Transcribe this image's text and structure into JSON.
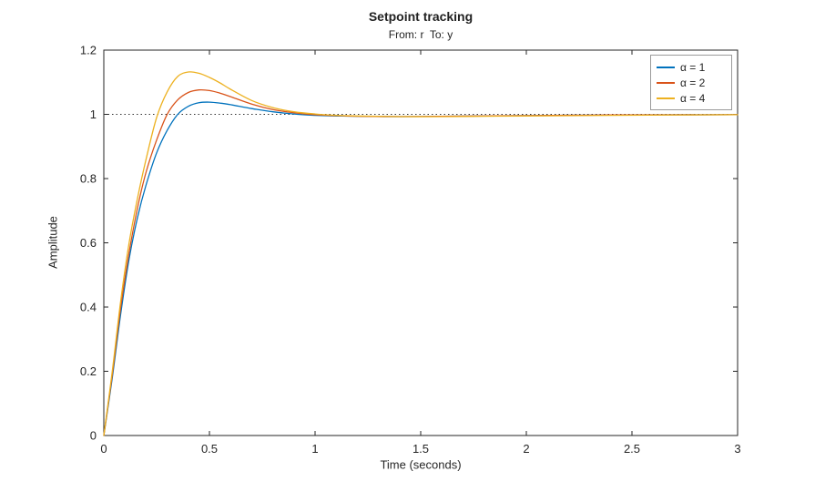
{
  "chart_data": {
    "type": "line",
    "title": "Setpoint tracking",
    "subtitle": "From: r  To: y",
    "xlabel": "Time (seconds)",
    "ylabel": "Amplitude",
    "xlim": [
      0,
      3
    ],
    "ylim": [
      0,
      1.2
    ],
    "xticks": [
      0,
      0.5,
      1,
      1.5,
      2,
      2.5,
      3
    ],
    "xtick_labels": [
      "0",
      "0.5",
      "1",
      "1.5",
      "2",
      "2.5",
      "3"
    ],
    "yticks": [
      0,
      0.2,
      0.4,
      0.6,
      0.8,
      1,
      1.2
    ],
    "ytick_labels": [
      "0",
      "0.2",
      "0.4",
      "0.6",
      "0.8",
      "1",
      "1.2"
    ],
    "grid": false,
    "axis_color": "#262626",
    "legend_position": "top-right",
    "reference_line": {
      "y": 1,
      "style": "dotted",
      "color": "#333333"
    },
    "x": [
      0,
      0.04,
      0.08,
      0.12,
      0.16,
      0.2,
      0.25,
      0.3,
      0.35,
      0.4,
      0.45,
      0.5,
      0.55,
      0.6,
      0.7,
      0.8,
      0.9,
      1.0,
      1.1,
      1.2,
      1.4,
      1.6,
      1.8,
      2.0,
      2.4,
      3.0
    ],
    "series": [
      {
        "name": "alpha-1",
        "label": "α = 1",
        "color": "#0072BD",
        "peak": 1.038,
        "values": [
          0,
          0.18,
          0.38,
          0.55,
          0.68,
          0.78,
          0.88,
          0.95,
          1.0,
          1.025,
          1.036,
          1.038,
          1.035,
          1.03,
          1.018,
          1.008,
          1.001,
          0.997,
          0.995,
          0.994,
          0.993,
          0.994,
          0.995,
          0.996,
          0.998,
          0.999
        ]
      },
      {
        "name": "alpha-2",
        "label": "α = 2",
        "color": "#D95319",
        "peak": 1.076,
        "values": [
          0,
          0.19,
          0.4,
          0.57,
          0.71,
          0.82,
          0.92,
          1.0,
          1.045,
          1.068,
          1.076,
          1.074,
          1.066,
          1.055,
          1.032,
          1.015,
          1.005,
          0.999,
          0.996,
          0.994,
          0.993,
          0.994,
          0.995,
          0.996,
          0.998,
          0.999
        ]
      },
      {
        "name": "alpha-4",
        "label": "α = 4",
        "color": "#EDB120",
        "peak": 1.132,
        "values": [
          0,
          0.2,
          0.42,
          0.6,
          0.74,
          0.86,
          0.99,
          1.07,
          1.118,
          1.132,
          1.128,
          1.115,
          1.098,
          1.078,
          1.043,
          1.021,
          1.008,
          1.001,
          0.997,
          0.995,
          0.993,
          0.993,
          0.994,
          0.995,
          0.997,
          0.999
        ]
      }
    ]
  }
}
